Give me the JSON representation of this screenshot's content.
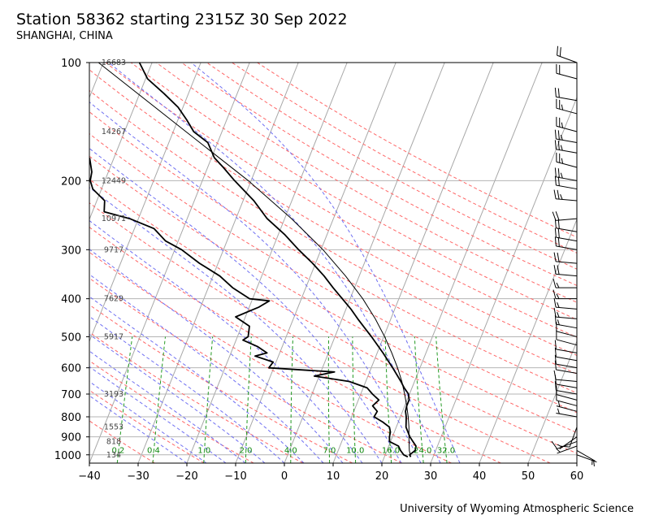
{
  "header": {
    "title": "Station 58362 starting 2315Z 30 Sep 2022",
    "subtitle": "SHANGHAI, CHINA"
  },
  "footer": {
    "credit": "University of Wyoming Atmospheric Science"
  },
  "chart_data": {
    "type": "skew-t log-p sounding",
    "xlim": [
      -40,
      60
    ],
    "ylim_hpa": [
      1050,
      100
    ],
    "y_scale": "log",
    "grid": true,
    "x_ticks": [
      "−40",
      "−30",
      "−20",
      "−10",
      "0",
      "10",
      "20",
      "30",
      "40",
      "50",
      "60"
    ],
    "x_tick_values": [
      -40,
      -30,
      -20,
      -10,
      0,
      10,
      20,
      30,
      40,
      50,
      60
    ],
    "y_ticks": [
      "100",
      "200",
      "300",
      "400",
      "500",
      "600",
      "700",
      "800",
      "900",
      "1000"
    ],
    "y_tick_values": [
      100,
      200,
      300,
      400,
      500,
      600,
      700,
      800,
      900,
      1000
    ],
    "height_labels": [
      {
        "p": 100,
        "text": "16683"
      },
      {
        "p": 150,
        "text": "14267"
      },
      {
        "p": 200,
        "text": "12449"
      },
      {
        "p": 250,
        "text": "10971"
      },
      {
        "p": 300,
        "text": "9717"
      },
      {
        "p": 400,
        "text": "7629"
      },
      {
        "p": 500,
        "text": "5917"
      },
      {
        "p": 700,
        "text": "3193"
      },
      {
        "p": 850,
        "text": "1553"
      },
      {
        "p": 925,
        "text": "818"
      },
      {
        "p": 1000,
        "text": "134"
      }
    ],
    "mixing_ratio_labels": [
      "0.2",
      "0.4",
      "1.0",
      "2.0",
      "4.0",
      "7.0",
      "10.0",
      "16.0",
      "24.0",
      "32.0"
    ],
    "mixing_ratio_values": [
      0.2,
      0.4,
      1.0,
      2.0,
      4.0,
      7.0,
      10.0,
      16.0,
      24.0,
      32.0
    ],
    "colors": {
      "isotherm": "#a8a8a8",
      "isobar": "#b4b4b4",
      "dry_adiabat": "#ff6666",
      "moist_adiabat": "#6f6ff2",
      "mixing_ratio": "#229922",
      "mixing_label": "#118811",
      "profile": "#000000",
      "parcel": "#000000"
    },
    "temperature_profile": [
      [
        1012,
        25.4
      ],
      [
        1000,
        25.0
      ],
      [
        975,
        25.8
      ],
      [
        950,
        25.6
      ],
      [
        925,
        24.6
      ],
      [
        900,
        23.6
      ],
      [
        875,
        22.8
      ],
      [
        850,
        22.0
      ],
      [
        800,
        21.2
      ],
      [
        775,
        20.6
      ],
      [
        750,
        20.4
      ],
      [
        725,
        20.4
      ],
      [
        700,
        19.8
      ],
      [
        675,
        18.4
      ],
      [
        650,
        17.2
      ],
      [
        600,
        14.4
      ],
      [
        550,
        11.2
      ],
      [
        500,
        7.5
      ],
      [
        475,
        5.4
      ],
      [
        450,
        3.2
      ],
      [
        425,
        1.0
      ],
      [
        400,
        -1.6
      ],
      [
        375,
        -4.4
      ],
      [
        350,
        -7.2
      ],
      [
        325,
        -10.6
      ],
      [
        300,
        -14.6
      ],
      [
        275,
        -18.6
      ],
      [
        250,
        -23.6
      ],
      [
        225,
        -27.8
      ],
      [
        200,
        -33.4
      ],
      [
        185,
        -36.8
      ],
      [
        175,
        -39.4
      ],
      [
        160,
        -42.0
      ],
      [
        150,
        -45.8
      ],
      [
        140,
        -48.2
      ],
      [
        130,
        -51.0
      ],
      [
        120,
        -55.0
      ],
      [
        110,
        -59.6
      ],
      [
        100,
        -62.6
      ]
    ],
    "dewpoint_profile": [
      [
        1012,
        24.8
      ],
      [
        1000,
        23.8
      ],
      [
        975,
        22.8
      ],
      [
        950,
        22.0
      ],
      [
        925,
        19.8
      ],
      [
        900,
        19.4
      ],
      [
        875,
        19.2
      ],
      [
        850,
        18.6
      ],
      [
        825,
        16.8
      ],
      [
        800,
        14.6
      ],
      [
        775,
        14.8
      ],
      [
        750,
        13.4
      ],
      [
        725,
        14.2
      ],
      [
        700,
        12.4
      ],
      [
        675,
        10.8
      ],
      [
        650,
        6.6
      ],
      [
        630,
        -1.0
      ],
      [
        615,
        2.8
      ],
      [
        600,
        -11.0
      ],
      [
        580,
        -10.6
      ],
      [
        560,
        -14.8
      ],
      [
        550,
        -12.6
      ],
      [
        530,
        -15.0
      ],
      [
        510,
        -18.6
      ],
      [
        500,
        -17.8
      ],
      [
        470,
        -18.4
      ],
      [
        445,
        -22.0
      ],
      [
        420,
        -18.0
      ],
      [
        405,
        -16.4
      ],
      [
        400,
        -20.6
      ],
      [
        375,
        -25.0
      ],
      [
        350,
        -28.6
      ],
      [
        325,
        -33.8
      ],
      [
        300,
        -38.6
      ],
      [
        285,
        -42.6
      ],
      [
        265,
        -46.0
      ],
      [
        250,
        -51.8
      ],
      [
        240,
        -57.6
      ],
      [
        225,
        -58.4
      ],
      [
        210,
        -61.8
      ],
      [
        200,
        -63.0
      ],
      [
        190,
        -63.4
      ],
      [
        175,
        -65.0
      ]
    ],
    "parcel_path": [
      [
        1012,
        25.4
      ],
      [
        975,
        24.6
      ],
      [
        950,
        24.2
      ],
      [
        900,
        23.4
      ],
      [
        850,
        22.6
      ],
      [
        800,
        21.6
      ],
      [
        750,
        20.4
      ],
      [
        700,
        19.0
      ],
      [
        650,
        17.4
      ],
      [
        600,
        15.4
      ],
      [
        550,
        13.0
      ],
      [
        500,
        10.2
      ],
      [
        450,
        6.8
      ],
      [
        400,
        2.6
      ],
      [
        350,
        -2.8
      ],
      [
        300,
        -9.6
      ],
      [
        250,
        -18.6
      ],
      [
        200,
        -30.6
      ],
      [
        150,
        -47.4
      ],
      [
        100,
        -71.0
      ]
    ],
    "wind_barbs": [
      {
        "p": 1000,
        "dir": 110,
        "kt": 5
      },
      {
        "p": 975,
        "dir": 120,
        "kt": 5
      },
      {
        "p": 950,
        "dir": 250,
        "kt": 5
      },
      {
        "p": 925,
        "dir": 250,
        "kt": 10
      },
      {
        "p": 900,
        "dir": 235,
        "kt": 5
      },
      {
        "p": 850,
        "dir": 200,
        "kt": 10
      },
      {
        "p": 800,
        "dir": 280,
        "kt": 5
      },
      {
        "p": 775,
        "dir": 285,
        "kt": 5
      },
      {
        "p": 750,
        "dir": 285,
        "kt": 10
      },
      {
        "p": 725,
        "dir": 285,
        "kt": 10
      },
      {
        "p": 700,
        "dir": 280,
        "kt": 10
      },
      {
        "p": 675,
        "dir": 280,
        "kt": 10
      },
      {
        "p": 650,
        "dir": 275,
        "kt": 10
      },
      {
        "p": 620,
        "dir": 280,
        "kt": 10
      },
      {
        "p": 600,
        "dir": 280,
        "kt": 10
      },
      {
        "p": 575,
        "dir": 280,
        "kt": 10
      },
      {
        "p": 550,
        "dir": 280,
        "kt": 10
      },
      {
        "p": 525,
        "dir": 285,
        "kt": 10
      },
      {
        "p": 500,
        "dir": 285,
        "kt": 10
      },
      {
        "p": 475,
        "dir": 280,
        "kt": 15
      },
      {
        "p": 450,
        "dir": 275,
        "kt": 15
      },
      {
        "p": 425,
        "dir": 275,
        "kt": 15
      },
      {
        "p": 400,
        "dir": 270,
        "kt": 15
      },
      {
        "p": 375,
        "dir": 270,
        "kt": 15
      },
      {
        "p": 350,
        "dir": 275,
        "kt": 20
      },
      {
        "p": 325,
        "dir": 275,
        "kt": 20
      },
      {
        "p": 300,
        "dir": 280,
        "kt": 20
      },
      {
        "p": 285,
        "dir": 280,
        "kt": 20
      },
      {
        "p": 270,
        "dir": 280,
        "kt": 20
      },
      {
        "p": 250,
        "dir": 265,
        "kt": 20
      },
      {
        "p": 225,
        "dir": 275,
        "kt": 25
      },
      {
        "p": 210,
        "dir": 280,
        "kt": 20
      },
      {
        "p": 200,
        "dir": 280,
        "kt": 25
      },
      {
        "p": 185,
        "dir": 285,
        "kt": 25
      },
      {
        "p": 170,
        "dir": 280,
        "kt": 25
      },
      {
        "p": 160,
        "dir": 280,
        "kt": 25
      },
      {
        "p": 150,
        "dir": 285,
        "kt": 25
      },
      {
        "p": 135,
        "dir": 285,
        "kt": 25
      },
      {
        "p": 125,
        "dir": 280,
        "kt": 20
      },
      {
        "p": 110,
        "dir": 285,
        "kt": 20
      },
      {
        "p": 100,
        "dir": 290,
        "kt": 20
      }
    ]
  }
}
